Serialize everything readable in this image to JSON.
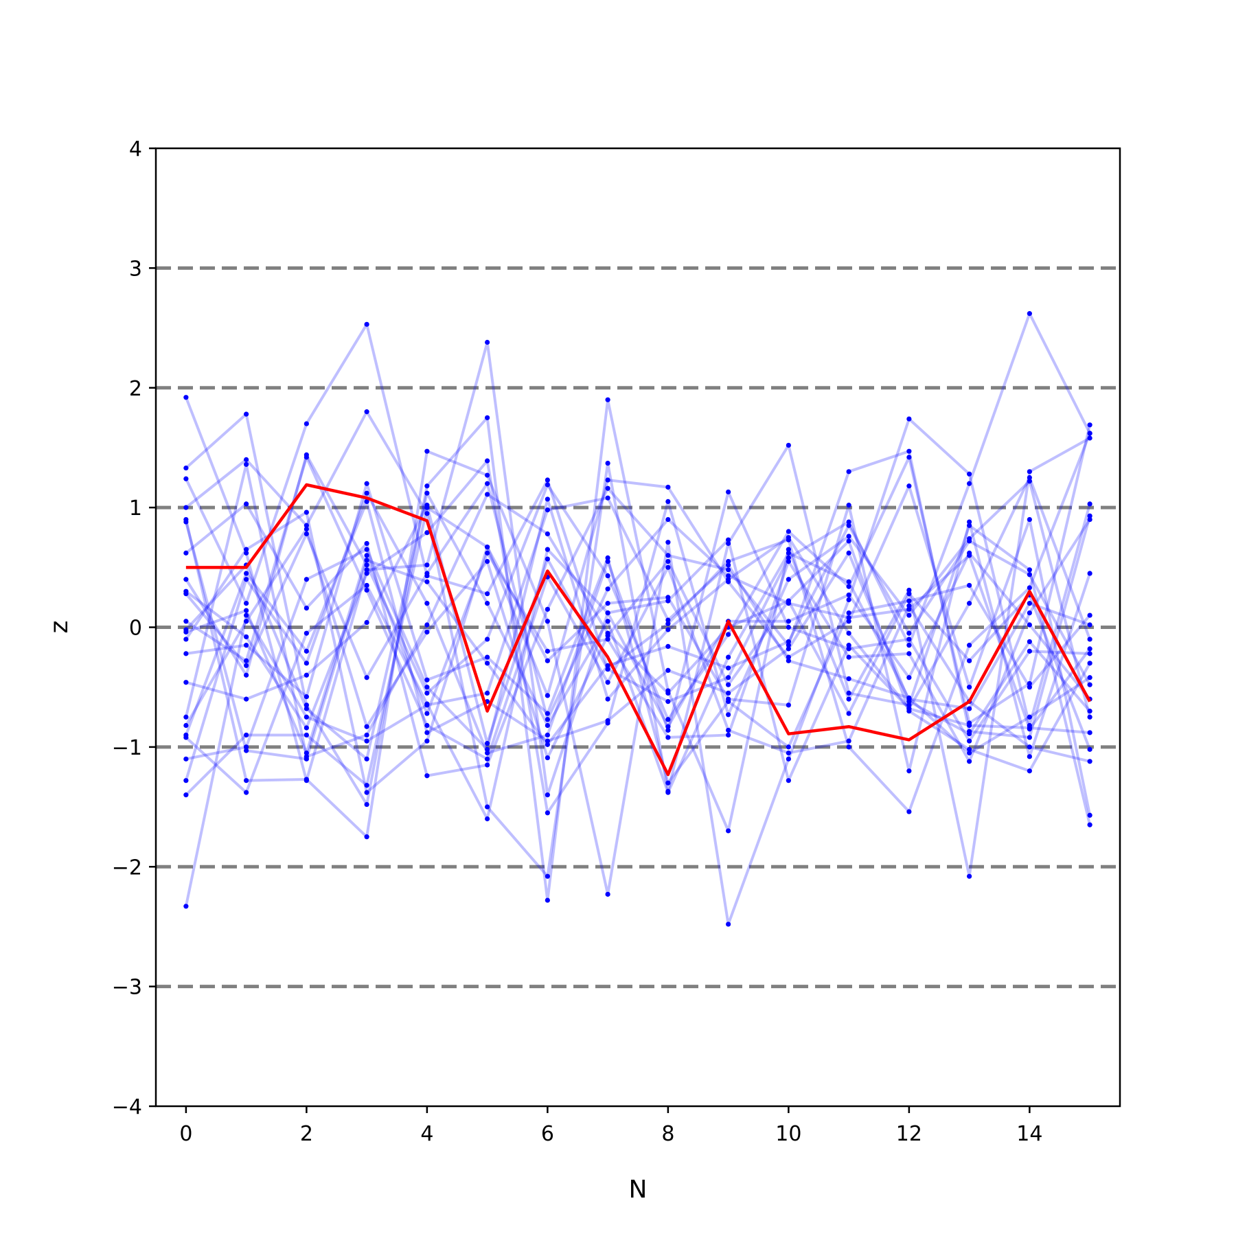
{
  "chart_data": {
    "type": "line",
    "title": "",
    "xlabel": "N",
    "ylabel": "z",
    "xlim": [
      -0.5,
      15.5
    ],
    "ylim": [
      -4,
      4
    ],
    "x_ticks": [
      0,
      2,
      4,
      6,
      8,
      10,
      12,
      14
    ],
    "y_ticks": [
      -4,
      -3,
      -2,
      -1,
      0,
      1,
      2,
      3,
      4
    ],
    "x_tick_labels": [
      "0",
      "2",
      "4",
      "6",
      "8",
      "10",
      "12",
      "14"
    ],
    "y_tick_labels": [
      "−4",
      "−3",
      "−2",
      "−1",
      "0",
      "1",
      "2",
      "3",
      "4"
    ],
    "reference_lines_y": [
      -3,
      -2,
      -1,
      0,
      1,
      2,
      3
    ],
    "grid": false,
    "legend": "none",
    "x": [
      0,
      1,
      2,
      3,
      4,
      5,
      6,
      7,
      8,
      9,
      10,
      11,
      12,
      13,
      14,
      15
    ],
    "highlight_series": {
      "color": "#ff0000",
      "values": [
        0.5,
        0.5,
        1.19,
        1.08,
        0.89,
        -0.7,
        0.47,
        -0.25,
        -1.23,
        0.05,
        -0.89,
        -0.83,
        -0.94,
        -0.62,
        0.3,
        -0.62
      ]
    },
    "background_series_color": "#0000ff",
    "background_series": [
      [
        1.92,
        0.62,
        -1.28,
        0.48,
        0.52,
        2.38,
        -1.4,
        0.12,
        0.22,
        0.73,
        -1.28,
        -0.15,
        -0.68,
        -0.82,
        -0.84,
        -0.88
      ],
      [
        1.33,
        1.78,
        -0.65,
        -1.48,
        1.18,
        1.75,
        -2.28,
        1.9,
        -0.53,
        -1.7,
        0.65,
        -0.6,
        0.31,
        -2.08,
        1.3,
        1.58
      ],
      [
        1.24,
        0.2,
        1.7,
        2.53,
        0.43,
        0.28,
        1.23,
        -0.35,
        -0.62,
        -0.42,
        0.58,
        0.88,
        -0.15,
        1.2,
        2.62,
        1.62
      ],
      [
        1.0,
        1.4,
        0.85,
        1.8,
        0.95,
        -1.5,
        -2.08,
        1.37,
        -1.37,
        0.7,
        1.52,
        -0.55,
        -0.65,
        0.85,
        0.48,
        -1.65
      ],
      [
        0.9,
        -1.28,
        -1.27,
        -1.75,
        1.47,
        1.27,
        0.05,
        -2.23,
        0.71,
        -2.48,
        -1.1,
        0.23,
        1.74,
        1.28,
        -0.82,
        1.03
      ],
      [
        0.62,
        1.03,
        0.16,
        0.7,
        -1.24,
        -1.15,
        0.15,
        1.16,
        0.6,
        0.48,
        -0.15,
        1.3,
        1.47,
        -0.87,
        -0.92,
        0.93
      ],
      [
        0.4,
        -0.4,
        1.44,
        0.52,
        -0.55,
        -0.1,
        1.19,
        0.43,
        -0.77,
        -0.06,
        0.8,
        0.34,
        1.42,
        -0.8,
        -0.47,
        1.69
      ],
      [
        0.3,
        -0.08,
        -0.84,
        0.45,
        0.79,
        1.39,
        -1.55,
        -0.8,
        1.05,
        -0.73,
        0.4,
        0.76,
        0.1,
        0.74,
        1.22,
        -0.75
      ],
      [
        -0.1,
        0.65,
        0.96,
        -1.38,
        -0.95,
        0.67,
        -0.57,
        1.23,
        1.17,
        0.38,
        -0.25,
        0.05,
        1.18,
        -0.5,
        0.9,
        -1.57
      ],
      [
        -0.22,
        -0.15,
        -0.58,
        1.2,
        -0.44,
        -0.25,
        -0.72,
        0.58,
        -1.3,
        -0.62,
        -1.0,
        0.12,
        0.22,
        0.35,
        -0.5,
        0.1
      ],
      [
        -0.46,
        -0.6,
        -0.4,
        0.04,
        1.02,
        -0.97,
        0.57,
        -0.35,
        0.03,
        0.55,
        0.73,
        -1.0,
        -1.54,
        -0.15,
        0.33,
        1.62
      ],
      [
        -0.75,
        1.36,
        -1.08,
        -0.9,
        0.02,
        1.11,
        0.78,
        -0.05,
        -0.55,
        0.0,
        0.22,
        0.72,
        -0.7,
        -1.02,
        -1.2,
        -0.3
      ],
      [
        -0.82,
        0.05,
        0.82,
        -0.83,
        -0.04,
        0.55,
        -1.09,
        -0.07,
        0.55,
        -0.48,
        0.22,
        -0.72,
        0.28,
        -0.28,
        0.27,
        -1.02
      ],
      [
        -0.92,
        -1.38,
        -0.05,
        0.35,
        -0.64,
        -1.6,
        0.65,
        0.12,
        -0.83,
        0.05,
        0.05,
        0.27,
        -0.42,
        0.62,
        0.02,
        -0.6
      ],
      [
        -1.1,
        -1.0,
        0.4,
        0.65,
        -0.5,
        -1.02,
        1.07,
        -0.6,
        -0.02,
        0.4,
        0.75,
        -0.05,
        -0.68,
        0.2,
        1.25,
        -0.1
      ],
      [
        -1.28,
        0.4,
        -0.3,
        1.12,
        0.2,
        -1.05,
        -0.9,
        0.55,
        -0.86,
        1.13,
        0.0,
        -0.18,
        -0.1,
        -0.95,
        -0.2,
        -0.22
      ],
      [
        -1.4,
        -0.9,
        -0.9,
        -1.32,
        1.0,
        0.67,
        -0.28,
        0.2,
        0.25,
        -0.6,
        -0.65,
        1.02,
        -1.2,
        0.88,
        -1.08,
        0.45
      ],
      [
        -2.33,
        0.1,
        -0.75,
        -0.95,
        -0.65,
        -0.55,
        0.98,
        1.08,
        0.06,
        0.52,
        -0.28,
        -0.43,
        -0.59,
        -1.05,
        -0.75,
        -0.42
      ],
      [
        0.88,
        -1.03,
        -1.1,
        0.56,
        0.38,
        -0.3,
        -0.98,
        -0.32,
        -0.16,
        -0.34,
        -0.12,
        0.85,
        -0.05,
        0.72,
        0.44,
        -0.48
      ],
      [
        -0.02,
        0.52,
        -0.68,
        -1.1,
        1.12,
        0.2,
        -0.82,
        0.05,
        -1.38,
        -0.25,
        0.62,
        0.38,
        -0.6,
        -0.68,
        0.2,
        0.02
      ],
      [
        0.05,
        -0.28,
        1.42,
        0.31,
        -0.82,
        -1.1,
        0.42,
        -0.46,
        0.5,
        -0.86,
        -1.05,
        -0.95,
        0.18,
        -0.62,
        -1.0,
        -1.12
      ],
      [
        -0.9,
        0.45,
        -0.2,
        1.05,
        -0.88,
        -0.62,
        -0.95,
        -0.78,
        -0.36,
        -0.55,
        -0.18,
        0.62,
        -0.62,
        -0.89,
        -0.12,
        -0.7
      ],
      [
        0.28,
        -0.32,
        0.78,
        -0.42,
        0.45,
        1.2,
        -0.77,
        0.32,
        0.9,
        0.43,
        0.2,
        0.08,
        0.15,
        0.6,
        -0.85,
        -0.18
      ],
      [
        -0.04,
        0.14,
        -1.05,
        0.6,
        -0.72,
        0.62,
        -0.2,
        -0.1,
        -0.92,
        -0.9,
        0.55,
        -0.25,
        -0.22,
        -1.12,
        0.12,
        0.9
      ]
    ]
  }
}
